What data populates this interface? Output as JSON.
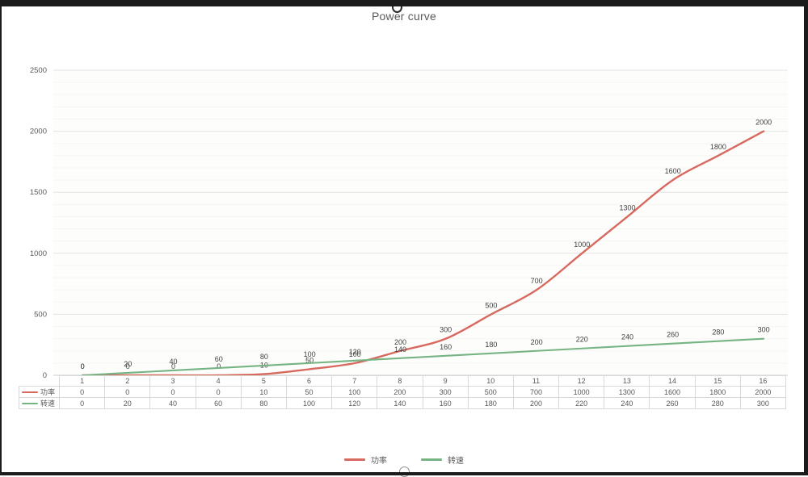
{
  "title": "Power curve",
  "chart_data": {
    "type": "line",
    "title": "Power curve",
    "categories": [
      1,
      2,
      3,
      4,
      5,
      6,
      7,
      8,
      9,
      10,
      11,
      12,
      13,
      14,
      15,
      16
    ],
    "series": [
      {
        "name": "功率",
        "color": "#d8695f",
        "smooth": true,
        "values": [
          0,
          0,
          0,
          0,
          10,
          50,
          100,
          200,
          300,
          500,
          700,
          1000,
          1300,
          1600,
          1800,
          2000
        ]
      },
      {
        "name": "转速",
        "color": "#76b583",
        "smooth": true,
        "values": [
          0,
          20,
          40,
          60,
          80,
          100,
          120,
          140,
          160,
          180,
          200,
          220,
          240,
          260,
          280,
          300
        ]
      }
    ],
    "xlabel": "",
    "ylabel": "",
    "ylim": [
      0,
      2500
    ],
    "y_ticks": [
      0,
      500,
      1000,
      1500,
      2000,
      2500
    ],
    "minor_gridline_step": 100,
    "grid": true,
    "data_labels": true,
    "data_table_shown": true,
    "legend_position": "bottom"
  }
}
